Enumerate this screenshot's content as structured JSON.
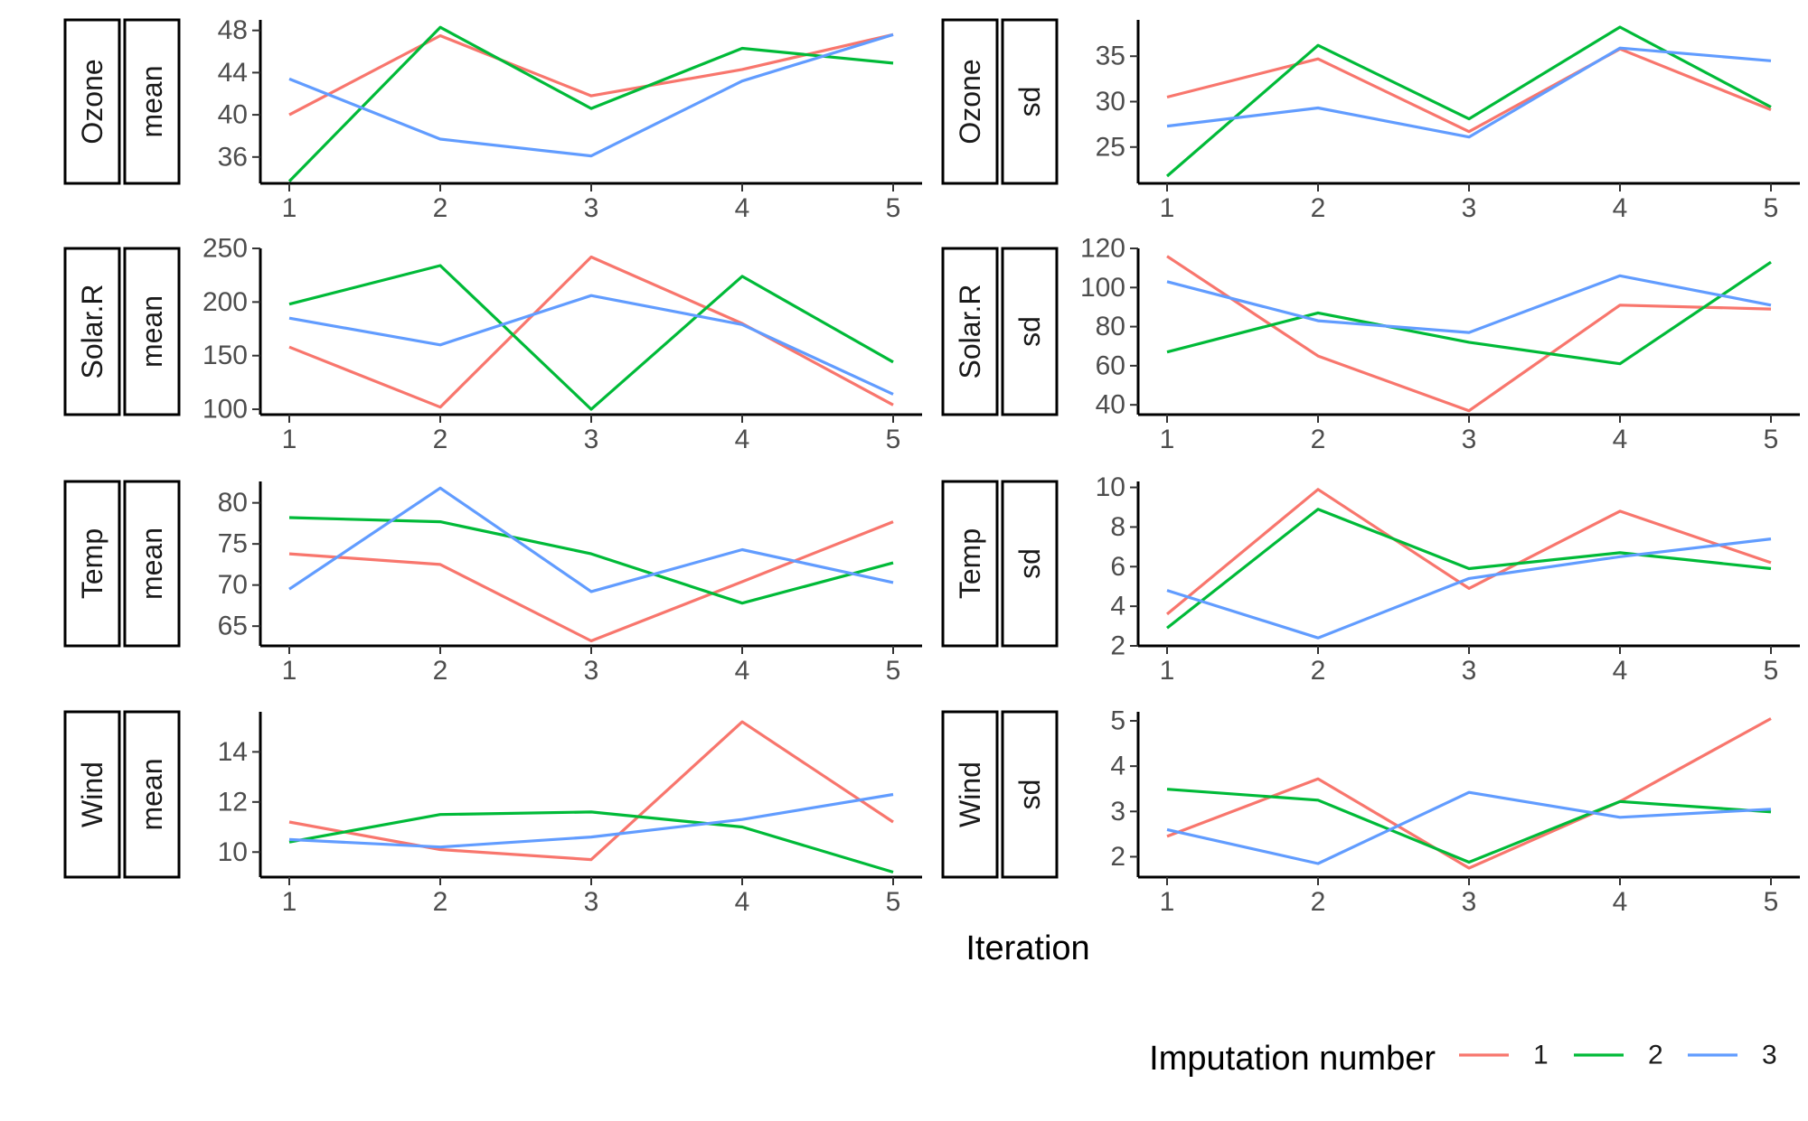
{
  "colors": {
    "series_1": "#F8766D",
    "series_2": "#00BA38",
    "series_3": "#619CFF"
  },
  "chart_data": {
    "type": "line",
    "xlabel": "Iteration",
    "legend": {
      "title": "Imputation number",
      "placement": "bottom-right",
      "entries": [
        "1",
        "2",
        "3"
      ]
    },
    "x": [
      1,
      2,
      3,
      4,
      5
    ],
    "grid": false,
    "panels": [
      {
        "variable": "Ozone",
        "statistic": "mean",
        "ylim": [
          33.5,
          49
        ],
        "yticks": [
          36,
          40,
          44,
          48
        ],
        "ytick_labels": [
          "36",
          "40",
          "44",
          "48"
        ],
        "series": [
          {
            "name": "1",
            "values": [
              40.0,
              47.5,
              41.8,
              44.3,
              47.6
            ]
          },
          {
            "name": "2",
            "values": [
              33.7,
              48.3,
              40.6,
              46.3,
              44.9
            ]
          },
          {
            "name": "3",
            "values": [
              43.4,
              37.7,
              36.1,
              43.2,
              47.6
            ]
          }
        ]
      },
      {
        "variable": "Ozone",
        "statistic": "sd",
        "ylim": [
          21,
          39
        ],
        "yticks": [
          25,
          30,
          35
        ],
        "ytick_labels": [
          "25",
          "30",
          "35"
        ],
        "series": [
          {
            "name": "1",
            "values": [
              30.5,
              34.7,
              26.7,
              35.8,
              29.1
            ]
          },
          {
            "name": "2",
            "values": [
              21.8,
              36.2,
              28.1,
              38.2,
              29.4
            ]
          },
          {
            "name": "3",
            "values": [
              27.3,
              29.3,
              26.1,
              35.9,
              34.5
            ]
          }
        ]
      },
      {
        "variable": "Solar.R",
        "statistic": "mean",
        "ylim": [
          95,
          250
        ],
        "yticks": [
          100,
          150,
          200,
          250
        ],
        "ytick_labels": [
          "100",
          "150",
          "200",
          "250"
        ],
        "series": [
          {
            "name": "1",
            "values": [
              158,
              102,
              242,
              180,
              104
            ]
          },
          {
            "name": "2",
            "values": [
              198,
              234,
              100,
              224,
              144
            ]
          },
          {
            "name": "3",
            "values": [
              185,
              160,
              206,
              179,
              114
            ]
          }
        ]
      },
      {
        "variable": "Solar.R",
        "statistic": "sd",
        "ylim": [
          35,
          120
        ],
        "yticks": [
          40,
          60,
          80,
          100,
          120
        ],
        "ytick_labels": [
          "40",
          "60",
          "80",
          "100",
          "120"
        ],
        "series": [
          {
            "name": "1",
            "values": [
              116,
              65,
              37,
              91,
              89
            ]
          },
          {
            "name": "2",
            "values": [
              67,
              87,
              72,
              61,
              113
            ]
          },
          {
            "name": "3",
            "values": [
              103,
              83,
              77,
              106,
              91
            ]
          }
        ]
      },
      {
        "variable": "Temp",
        "statistic": "mean",
        "ylim": [
          62.6,
          82.6
        ],
        "yticks": [
          65,
          70,
          75,
          80
        ],
        "ytick_labels": [
          "65",
          "70",
          "75",
          "80"
        ],
        "series": [
          {
            "name": "1",
            "values": [
              73.8,
              72.5,
              63.2,
              70.4,
              77.7
            ]
          },
          {
            "name": "2",
            "values": [
              78.2,
              77.7,
              73.8,
              67.8,
              72.7
            ]
          },
          {
            "name": "3",
            "values": [
              69.5,
              81.8,
              69.2,
              74.3,
              70.3
            ]
          }
        ]
      },
      {
        "variable": "Temp",
        "statistic": "sd",
        "ylim": [
          2,
          10.3
        ],
        "yticks": [
          2,
          4,
          6,
          8,
          10
        ],
        "ytick_labels": [
          "2",
          "4",
          "6",
          "8",
          "10"
        ],
        "series": [
          {
            "name": "1",
            "values": [
              3.6,
              9.9,
              4.9,
              8.8,
              6.2
            ]
          },
          {
            "name": "2",
            "values": [
              2.9,
              8.9,
              5.9,
              6.7,
              5.9
            ]
          },
          {
            "name": "3",
            "values": [
              4.8,
              2.4,
              5.4,
              6.5,
              7.4
            ]
          }
        ]
      },
      {
        "variable": "Wind",
        "statistic": "mean",
        "ylim": [
          9.0,
          15.6
        ],
        "yticks": [
          10,
          12,
          14
        ],
        "ytick_labels": [
          "10",
          "12",
          "14"
        ],
        "series": [
          {
            "name": "1",
            "values": [
              11.2,
              10.1,
              9.7,
              15.2,
              11.2
            ]
          },
          {
            "name": "2",
            "values": [
              10.4,
              11.5,
              11.6,
              11.0,
              9.2
            ]
          },
          {
            "name": "3",
            "values": [
              10.5,
              10.2,
              10.6,
              11.3,
              12.3
            ]
          }
        ]
      },
      {
        "variable": "Wind",
        "statistic": "sd",
        "ylim": [
          1.55,
          5.2
        ],
        "yticks": [
          2,
          3,
          4,
          5
        ],
        "ytick_labels": [
          "2",
          "3",
          "4",
          "5"
        ],
        "series": [
          {
            "name": "1",
            "values": [
              2.45,
              3.72,
              1.75,
              3.22,
              5.05
            ]
          },
          {
            "name": "2",
            "values": [
              3.49,
              3.25,
              1.88,
              3.22,
              2.99
            ]
          },
          {
            "name": "3",
            "values": [
              2.6,
              1.85,
              3.42,
              2.87,
              3.05
            ]
          }
        ]
      }
    ]
  }
}
